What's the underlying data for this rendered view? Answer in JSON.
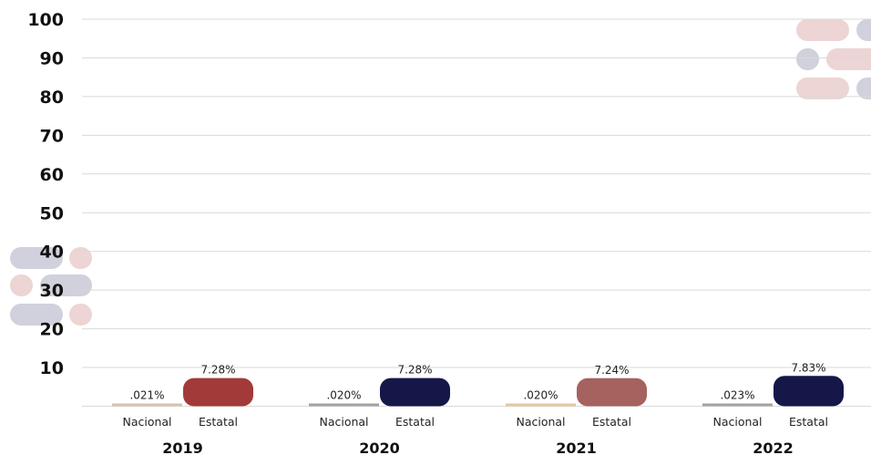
{
  "chart_data": {
    "type": "bar",
    "ylim": [
      0,
      100
    ],
    "yticks": [
      "100",
      "90",
      "80",
      "70",
      "60",
      "50",
      "40",
      "30",
      "20",
      "10"
    ],
    "grid": true,
    "groups": [
      {
        "year": "2019",
        "bars": [
          {
            "label": "Nacional",
            "value": 0.021,
            "display": ".021%",
            "color": "#d9c3ad"
          },
          {
            "label": "Estatal",
            "value": 7.28,
            "display": "7.28%",
            "color": "#a33a3a"
          }
        ]
      },
      {
        "year": "2020",
        "bars": [
          {
            "label": "Nacional",
            "value": 0.02,
            "display": ".020%",
            "color": "#a3a3a3"
          },
          {
            "label": "Estatal",
            "value": 7.28,
            "display": "7.28%",
            "color": "#161749"
          }
        ]
      },
      {
        "year": "2021",
        "bars": [
          {
            "label": "Nacional",
            "value": 0.02,
            "display": ".020%",
            "color": "#e5c7a3"
          },
          {
            "label": "Estatal",
            "value": 7.24,
            "display": "7.24%",
            "color": "#a5625f"
          }
        ]
      },
      {
        "year": "2022",
        "bars": [
          {
            "label": "Nacional",
            "value": 0.023,
            "display": ".023%",
            "color": "#a3a3a3"
          },
          {
            "label": "Estatal",
            "value": 7.83,
            "display": "7.83%",
            "color": "#161749"
          }
        ]
      }
    ]
  },
  "decor_colors": {
    "grey": "#d0d1dc",
    "pink": "#ecd5d4"
  }
}
